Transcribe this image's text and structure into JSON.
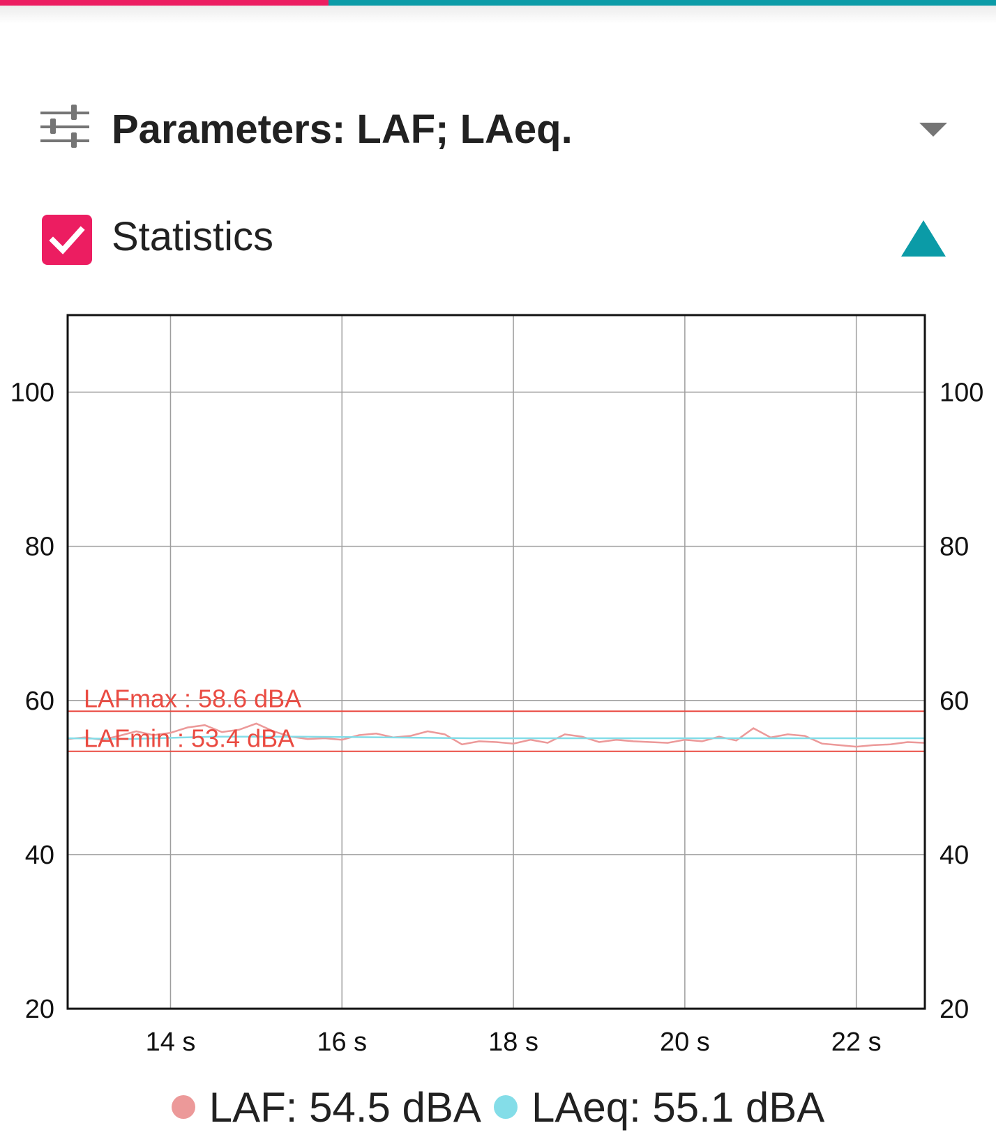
{
  "colors": {
    "accent_pink": "#ec1d61",
    "accent_teal": "#0b9ba7",
    "laf_series": "#ec9999",
    "laeq_series": "#84dde8",
    "stat_line": "#ea4b42",
    "grid": "#9e9e9e",
    "icon_grey": "#757575"
  },
  "progress": {
    "fraction": 0.33
  },
  "parameters": {
    "label": "Parameters: LAF; LAeq.",
    "icon": "sliders-icon",
    "dropdown_icon": "caret-down-icon"
  },
  "statistics": {
    "label": "Statistics",
    "checked": true,
    "icon": "collapse-triangle-icon"
  },
  "chart_data": {
    "type": "line",
    "x_tick_labels": [
      "14 s",
      "16 s",
      "18 s",
      "20 s",
      "22 s"
    ],
    "x_ticks": [
      14,
      16,
      18,
      20,
      22
    ],
    "xlim": [
      12.8,
      22.8
    ],
    "y_ticks": [
      20,
      40,
      60,
      80,
      100
    ],
    "ylim": [
      20,
      110
    ],
    "grid": true,
    "y_axis_labels_both_sides": true,
    "reference_lines": [
      {
        "label": "LAFmax : 58.6 dBA",
        "value": 58.6
      },
      {
        "label": "LAFmin : 53.4 dBA",
        "value": 53.4
      }
    ],
    "series": [
      {
        "name": "LAF",
        "x": [
          12.8,
          13.0,
          13.2,
          13.4,
          13.6,
          13.8,
          14.0,
          14.2,
          14.4,
          14.6,
          14.8,
          15.0,
          15.2,
          15.4,
          15.6,
          15.8,
          16.0,
          16.2,
          16.4,
          16.6,
          16.8,
          17.0,
          17.2,
          17.4,
          17.6,
          17.8,
          18.0,
          18.2,
          18.4,
          18.6,
          18.8,
          19.0,
          19.2,
          19.4,
          19.6,
          19.8,
          20.0,
          20.2,
          20.4,
          20.6,
          20.8,
          21.0,
          21.2,
          21.4,
          21.6,
          21.8,
          22.0,
          22.2,
          22.4,
          22.6,
          22.8
        ],
        "values": [
          55.0,
          55.2,
          54.9,
          55.4,
          56.0,
          55.5,
          55.8,
          56.5,
          56.8,
          55.9,
          56.2,
          57.0,
          56.0,
          55.3,
          55.0,
          55.1,
          54.9,
          55.5,
          55.7,
          55.2,
          55.4,
          56.0,
          55.6,
          54.3,
          54.7,
          54.6,
          54.4,
          54.9,
          54.5,
          55.6,
          55.3,
          54.6,
          54.9,
          54.7,
          54.6,
          54.5,
          54.9,
          54.7,
          55.3,
          54.8,
          56.4,
          55.2,
          55.6,
          55.4,
          54.4,
          54.2,
          54.0,
          54.2,
          54.3,
          54.6,
          54.5
        ]
      },
      {
        "name": "LAeq",
        "x": [
          12.8,
          13.5,
          14.5,
          15.5,
          16.5,
          17.5,
          18.5,
          19.5,
          20.5,
          21.5,
          22.8
        ],
        "values": [
          55.1,
          55.0,
          55.3,
          55.3,
          55.2,
          55.1,
          55.1,
          55.1,
          55.1,
          55.1,
          55.1
        ]
      }
    ]
  },
  "legend": [
    {
      "label": "LAF: 54.5 dBA",
      "color": "#ec9999"
    },
    {
      "label": "LAeq: 55.1 dBA",
      "color": "#84dde8"
    }
  ]
}
